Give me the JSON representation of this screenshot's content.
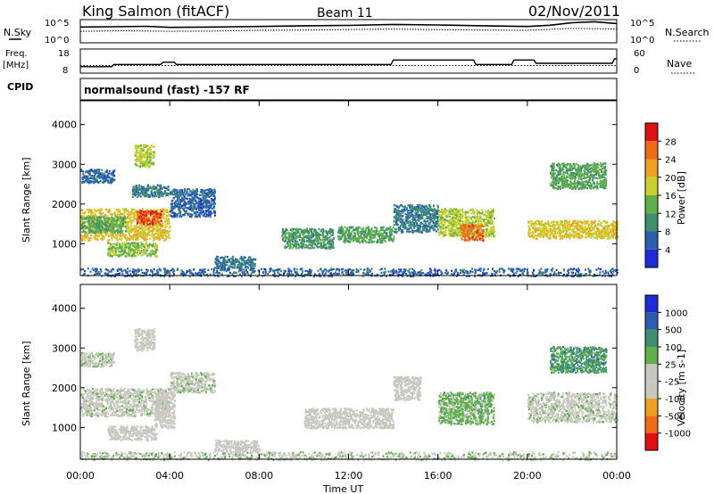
{
  "header": {
    "station": "King Salmon (fitACF)",
    "beam": "Beam 11",
    "date": "02/Nov/2011"
  },
  "noise_panel": {
    "left_label": "N.Sky",
    "right_label": "N.Search",
    "left_ticks": [
      "10^5",
      "10^0"
    ],
    "right_ticks": [
      "10^5",
      "10^0"
    ]
  },
  "freq_panel": {
    "left_label_1": "Freq.",
    "left_label_2": "[MHz]",
    "right_label": "Nave",
    "left_ticks": [
      "18",
      "8"
    ],
    "right_ticks": [
      "60",
      "0"
    ]
  },
  "cpid": {
    "label": "CPID",
    "text": "normalsound (fast) -157 RF"
  },
  "x_axis": {
    "label": "Time UT",
    "ticks": [
      "00:00",
      "04:00",
      "08:00",
      "12:00",
      "16:00",
      "20:00",
      "00:00"
    ]
  },
  "power_panel": {
    "ylabel": "Slant Range [km]",
    "colorbar_label": "Power [dB]",
    "colorbar_ticks": [
      "28",
      "24",
      "20",
      "16",
      "12",
      "8",
      "4"
    ]
  },
  "velocity_panel": {
    "ylabel": "Slant Range [km]",
    "colorbar_label": "Velocity [m s-1]",
    "colorbar_ticks": [
      "1000",
      "500",
      "100",
      "25",
      "-25",
      "-100",
      "-500",
      "-1000"
    ]
  },
  "colors": {
    "power_scale": [
      "#1f2bd6",
      "#2a5fb0",
      "#3f8f6f",
      "#5fb04a",
      "#c8d02c",
      "#f0a020",
      "#f06a18",
      "#e01010"
    ],
    "velocity_scale": [
      "#e01010",
      "#f06a18",
      "#f0a020",
      "#c8c8c0",
      "#c8c8c0",
      "#5fb04a",
      "#3f8f6f",
      "#2a5fb0",
      "#1f2bd6"
    ]
  },
  "chart_data": [
    {
      "type": "line",
      "title": "N.Sky / N.Search",
      "x_unit": "hours UT",
      "xlim": [
        0,
        24
      ],
      "y_scale": "log",
      "series": [
        {
          "name": "N.Sky",
          "x": [
            0,
            1.5,
            3,
            4,
            6,
            8,
            10,
            12,
            14,
            16,
            18,
            20,
            21,
            22,
            23,
            24
          ],
          "values": [
            3000,
            3500,
            4500,
            2500,
            3000,
            4000,
            6000,
            7000,
            12000,
            9000,
            6000,
            4000,
            8000,
            30000,
            50000,
            20000
          ]
        },
        {
          "name": "N.Search",
          "x": [
            0,
            2,
            4,
            6,
            8,
            10,
            12,
            14,
            16,
            18,
            20,
            22,
            24
          ],
          "values": [
            300,
            400,
            300,
            350,
            500,
            600,
            800,
            1000,
            700,
            600,
            500,
            1500,
            1000
          ]
        }
      ]
    },
    {
      "type": "line",
      "title": "Freq. / Nave",
      "x_unit": "hours UT",
      "xlim": [
        0,
        24
      ],
      "ylim": [
        8,
        18
      ],
      "series": [
        {
          "name": "Freq.",
          "x": [
            0,
            1.4,
            1.5,
            3.6,
            3.7,
            4.2,
            4.3,
            8.0,
            8.1,
            13.9,
            14.0,
            17.6,
            17.7,
            19.3,
            19.4,
            20.3,
            20.4,
            23.8,
            23.9,
            24
          ],
          "values": [
            10.5,
            10.5,
            11.5,
            11.5,
            12.5,
            12.5,
            11.5,
            11.5,
            11.5,
            11.5,
            13.5,
            13.5,
            11.5,
            11.5,
            13.5,
            13.5,
            12,
            12,
            14,
            14
          ]
        },
        {
          "name": "Nave",
          "x": [
            0,
            24
          ],
          "values": [
            18,
            18
          ]
        }
      ]
    },
    {
      "type": "heatmap",
      "title": "Power [dB]",
      "x_unit": "hours UT",
      "y_unit": "km",
      "xlim": [
        0,
        24
      ],
      "ylim": [
        200,
        4600
      ],
      "clim": [
        0,
        30
      ],
      "blobs": [
        {
          "t": [
            0.0,
            4.0
          ],
          "r": [
            1100,
            1900
          ],
          "value": 18
        },
        {
          "t": [
            2.5,
            3.6
          ],
          "r": [
            1500,
            1850
          ],
          "value": 26
        },
        {
          "t": [
            0.0,
            2.0
          ],
          "r": [
            1300,
            1700
          ],
          "value": 12
        },
        {
          "t": [
            1.2,
            3.4
          ],
          "r": [
            700,
            1050
          ],
          "value": 14
        },
        {
          "t": [
            0.0,
            1.5
          ],
          "r": [
            2550,
            2900
          ],
          "value": 6
        },
        {
          "t": [
            2.3,
            4.0
          ],
          "r": [
            2200,
            2500
          ],
          "value": 8
        },
        {
          "t": [
            2.4,
            3.3
          ],
          "r": [
            2950,
            3500
          ],
          "value": 16
        },
        {
          "t": [
            4.0,
            6.0
          ],
          "r": [
            1700,
            2400
          ],
          "value": 6
        },
        {
          "t": [
            6.0,
            7.8
          ],
          "r": [
            400,
            700
          ],
          "value": 8
        },
        {
          "t": [
            9.0,
            11.3
          ],
          "r": [
            900,
            1400
          ],
          "value": 10
        },
        {
          "t": [
            11.5,
            14.0
          ],
          "r": [
            1050,
            1450
          ],
          "value": 12
        },
        {
          "t": [
            14.0,
            16.0
          ],
          "r": [
            1300,
            2000
          ],
          "value": 8
        },
        {
          "t": [
            16.0,
            18.5
          ],
          "r": [
            1200,
            1900
          ],
          "value": 16
        },
        {
          "t": [
            17.0,
            18.0
          ],
          "r": [
            1100,
            1500
          ],
          "value": 24
        },
        {
          "t": [
            20.0,
            24.0
          ],
          "r": [
            1150,
            1600
          ],
          "value": 18
        },
        {
          "t": [
            21.0,
            23.5
          ],
          "r": [
            2400,
            3050
          ],
          "value": 12
        },
        {
          "t": [
            0.0,
            24.0
          ],
          "r": [
            200,
            400
          ],
          "value": 6
        }
      ]
    },
    {
      "type": "heatmap",
      "title": "Velocity [m s-1]",
      "x_unit": "hours UT",
      "y_unit": "km",
      "xlim": [
        0,
        24
      ],
      "ylim": [
        200,
        4600
      ],
      "clim": [
        -1000,
        1000
      ],
      "blobs": [
        {
          "t": [
            0.0,
            4.0
          ],
          "r": [
            1300,
            2000
          ],
          "value": 0
        },
        {
          "t": [
            0.0,
            1.5
          ],
          "r": [
            2550,
            2900
          ],
          "value": 0
        },
        {
          "t": [
            3.3,
            4.2
          ],
          "r": [
            1000,
            1900
          ],
          "value": -150
        },
        {
          "t": [
            1.2,
            3.4
          ],
          "r": [
            700,
            1050
          ],
          "value": -80
        },
        {
          "t": [
            2.4,
            3.3
          ],
          "r": [
            2950,
            3500
          ],
          "value": -120
        },
        {
          "t": [
            4.0,
            6.0
          ],
          "r": [
            1900,
            2400
          ],
          "value": 0
        },
        {
          "t": [
            6.0,
            8.0
          ],
          "r": [
            400,
            700
          ],
          "value": -150
        },
        {
          "t": [
            10.0,
            14.0
          ],
          "r": [
            1000,
            1500
          ],
          "value": -100
        },
        {
          "t": [
            14.0,
            15.2
          ],
          "r": [
            1700,
            2300
          ],
          "value": -100
        },
        {
          "t": [
            16.0,
            18.5
          ],
          "r": [
            1100,
            1900
          ],
          "value": 200
        },
        {
          "t": [
            20.0,
            24.0
          ],
          "r": [
            1150,
            1900
          ],
          "value": 0
        },
        {
          "t": [
            21.0,
            23.5
          ],
          "r": [
            2400,
            3050
          ],
          "value": 400
        },
        {
          "t": [
            0.0,
            24.0
          ],
          "r": [
            200,
            400
          ],
          "value": 30
        }
      ]
    }
  ]
}
